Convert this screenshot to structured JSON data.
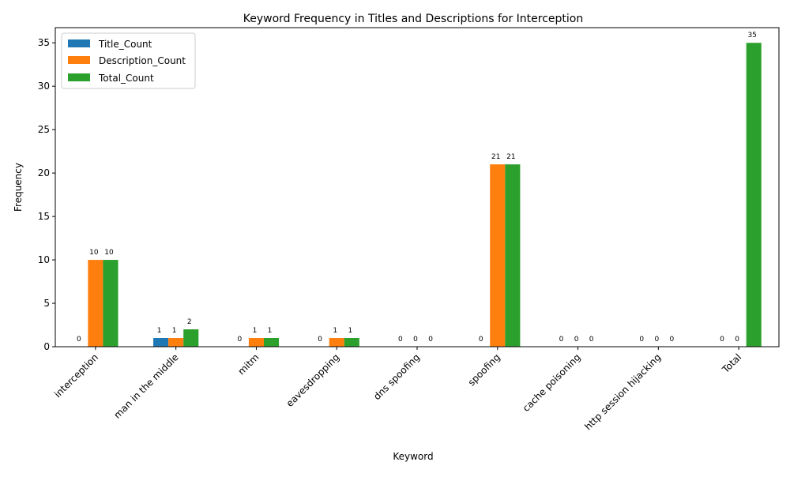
{
  "chart_data": {
    "type": "bar",
    "title": "Keyword Frequency in Titles and Descriptions for Interception",
    "xlabel": "Keyword",
    "ylabel": "Frequency",
    "ylim": [
      0,
      36.75
    ],
    "yticks": [
      0,
      5,
      10,
      15,
      20,
      25,
      30,
      35
    ],
    "grid": false,
    "legend_position": "top-left",
    "categories": [
      "interception",
      "man in the middle",
      "mitm",
      "eavesdropping",
      "dns spoofing",
      "spoofing",
      "cache poisoning",
      "http session hijacking",
      "Total"
    ],
    "series": [
      {
        "name": "Title_Count",
        "color": "#1f77b4",
        "values": [
          0,
          1,
          0,
          0,
          0,
          0,
          0,
          0,
          0
        ]
      },
      {
        "name": "Description_Count",
        "color": "#ff7f0e",
        "values": [
          10,
          1,
          1,
          1,
          0,
          21,
          0,
          0,
          0
        ]
      },
      {
        "name": "Total_Count",
        "color": "#2ca02c",
        "values": [
          10,
          2,
          1,
          1,
          0,
          21,
          0,
          0,
          35
        ]
      }
    ]
  }
}
